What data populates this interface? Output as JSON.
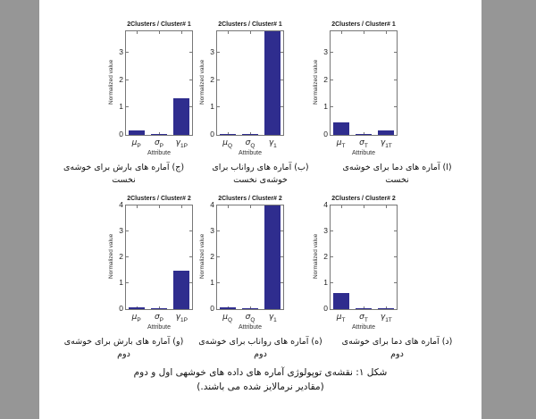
{
  "page": {
    "background_color": "#969696",
    "paper_color": "#ffffff",
    "bar_color": "#2f2d8e"
  },
  "chart_data": [
    {
      "type": "bar",
      "title": "2Clusters / Cluster# 1",
      "ylabel": "Normalized value",
      "xlabel": "Attribute",
      "categories": [
        {
          "sym": "μ",
          "sub": "P"
        },
        {
          "sym": "σ",
          "sub": "P"
        },
        {
          "sym": "γ",
          "sub": "1P"
        }
      ],
      "values": [
        0.16,
        0.03,
        1.35
      ],
      "clipped": [
        false,
        false,
        false
      ],
      "ylim": [
        0,
        3.8
      ],
      "yticks": [
        0,
        1,
        2,
        3
      ],
      "bar_color": "#2f2d8e",
      "grid": false,
      "legend": "none"
    },
    {
      "type": "bar",
      "title": "2Clusters / Cluster# 1",
      "ylabel": "Normalized value",
      "xlabel": "Attribute",
      "categories": [
        {
          "sym": "μ",
          "sub": "Q"
        },
        {
          "sym": "σ",
          "sub": "Q"
        },
        {
          "sym": "γ",
          "sub": "1"
        }
      ],
      "values": [
        0.03,
        0.02,
        3.8
      ],
      "clipped": [
        false,
        false,
        true
      ],
      "ylim": [
        0,
        3.8
      ],
      "yticks": [
        0,
        1,
        2,
        3
      ],
      "bar_color": "#2f2d8e",
      "grid": false,
      "legend": "none"
    },
    {
      "type": "bar",
      "title": "2Clusters / Cluster# 1",
      "ylabel": "Normalized value",
      "xlabel": "Attribute",
      "categories": [
        {
          "sym": "μ",
          "sub": "T"
        },
        {
          "sym": "σ",
          "sub": "T"
        },
        {
          "sym": "γ",
          "sub": "1T"
        }
      ],
      "values": [
        0.45,
        0.03,
        0.17
      ],
      "clipped": [
        false,
        false,
        false
      ],
      "ylim": [
        0,
        3.8
      ],
      "yticks": [
        0,
        1,
        2,
        3
      ],
      "bar_color": "#2f2d8e",
      "grid": false,
      "legend": "none"
    },
    {
      "type": "bar",
      "title": "2Clusters / Cluster# 2",
      "ylabel": "Normalized value",
      "xlabel": "Attribute",
      "categories": [
        {
          "sym": "μ",
          "sub": "P"
        },
        {
          "sym": "σ",
          "sub": "P"
        },
        {
          "sym": "γ",
          "sub": "1P"
        }
      ],
      "values": [
        0.07,
        0.02,
        1.5
      ],
      "clipped": [
        false,
        false,
        false
      ],
      "ylim": [
        0,
        4
      ],
      "yticks": [
        0,
        1,
        2,
        3,
        4
      ],
      "bar_color": "#2f2d8e",
      "grid": false,
      "legend": "none"
    },
    {
      "type": "bar",
      "title": "2Clusters / Cluster# 2",
      "ylabel": "Normalized value",
      "xlabel": "Attribute",
      "categories": [
        {
          "sym": "μ",
          "sub": "Q"
        },
        {
          "sym": "σ",
          "sub": "Q"
        },
        {
          "sym": "γ",
          "sub": "1"
        }
      ],
      "values": [
        0.07,
        0.02,
        4.0
      ],
      "clipped": [
        false,
        false,
        true
      ],
      "ylim": [
        0,
        4
      ],
      "yticks": [
        0,
        1,
        2,
        3,
        4
      ],
      "bar_color": "#2f2d8e",
      "grid": false,
      "legend": "none"
    },
    {
      "type": "bar",
      "title": "2Clusters / Cluster# 2",
      "ylabel": "Normalized value",
      "xlabel": "Attribute",
      "categories": [
        {
          "sym": "μ",
          "sub": "T"
        },
        {
          "sym": "σ",
          "sub": "T"
        },
        {
          "sym": "γ",
          "sub": "1T"
        }
      ],
      "values": [
        0.63,
        0.05,
        0.02
      ],
      "clipped": [
        false,
        false,
        false
      ],
      "ylim": [
        0,
        4
      ],
      "yticks": [
        0,
        1,
        2,
        3,
        4
      ],
      "bar_color": "#2f2d8e",
      "grid": false,
      "legend": "none"
    }
  ],
  "captions": {
    "row1": [
      {
        "text": "(ا) آماره های دما برای خوشه‌ی نخست"
      },
      {
        "text": "(ب) آماره های رواناب برای خوشه‌ی نخست"
      },
      {
        "text": "(ج) آماره های بارش برای خوشه‌ی نخست"
      }
    ],
    "row2": [
      {
        "text": "(د) آماره های دما برای خوشه‌ی دوم"
      },
      {
        "text": "(ه) آماره های رواناب برای خوشه‌ی دوم"
      },
      {
        "text": "(و) آماره های بارش برای خوشه‌ی دوم"
      }
    ]
  },
  "figure_caption": {
    "line1": "شکل ۱: نقشه‌ی توپولوژی آماره های داده های خوشهی اول و دوم",
    "line2": "(مقادیر نرمالایز شده می باشند.)"
  }
}
